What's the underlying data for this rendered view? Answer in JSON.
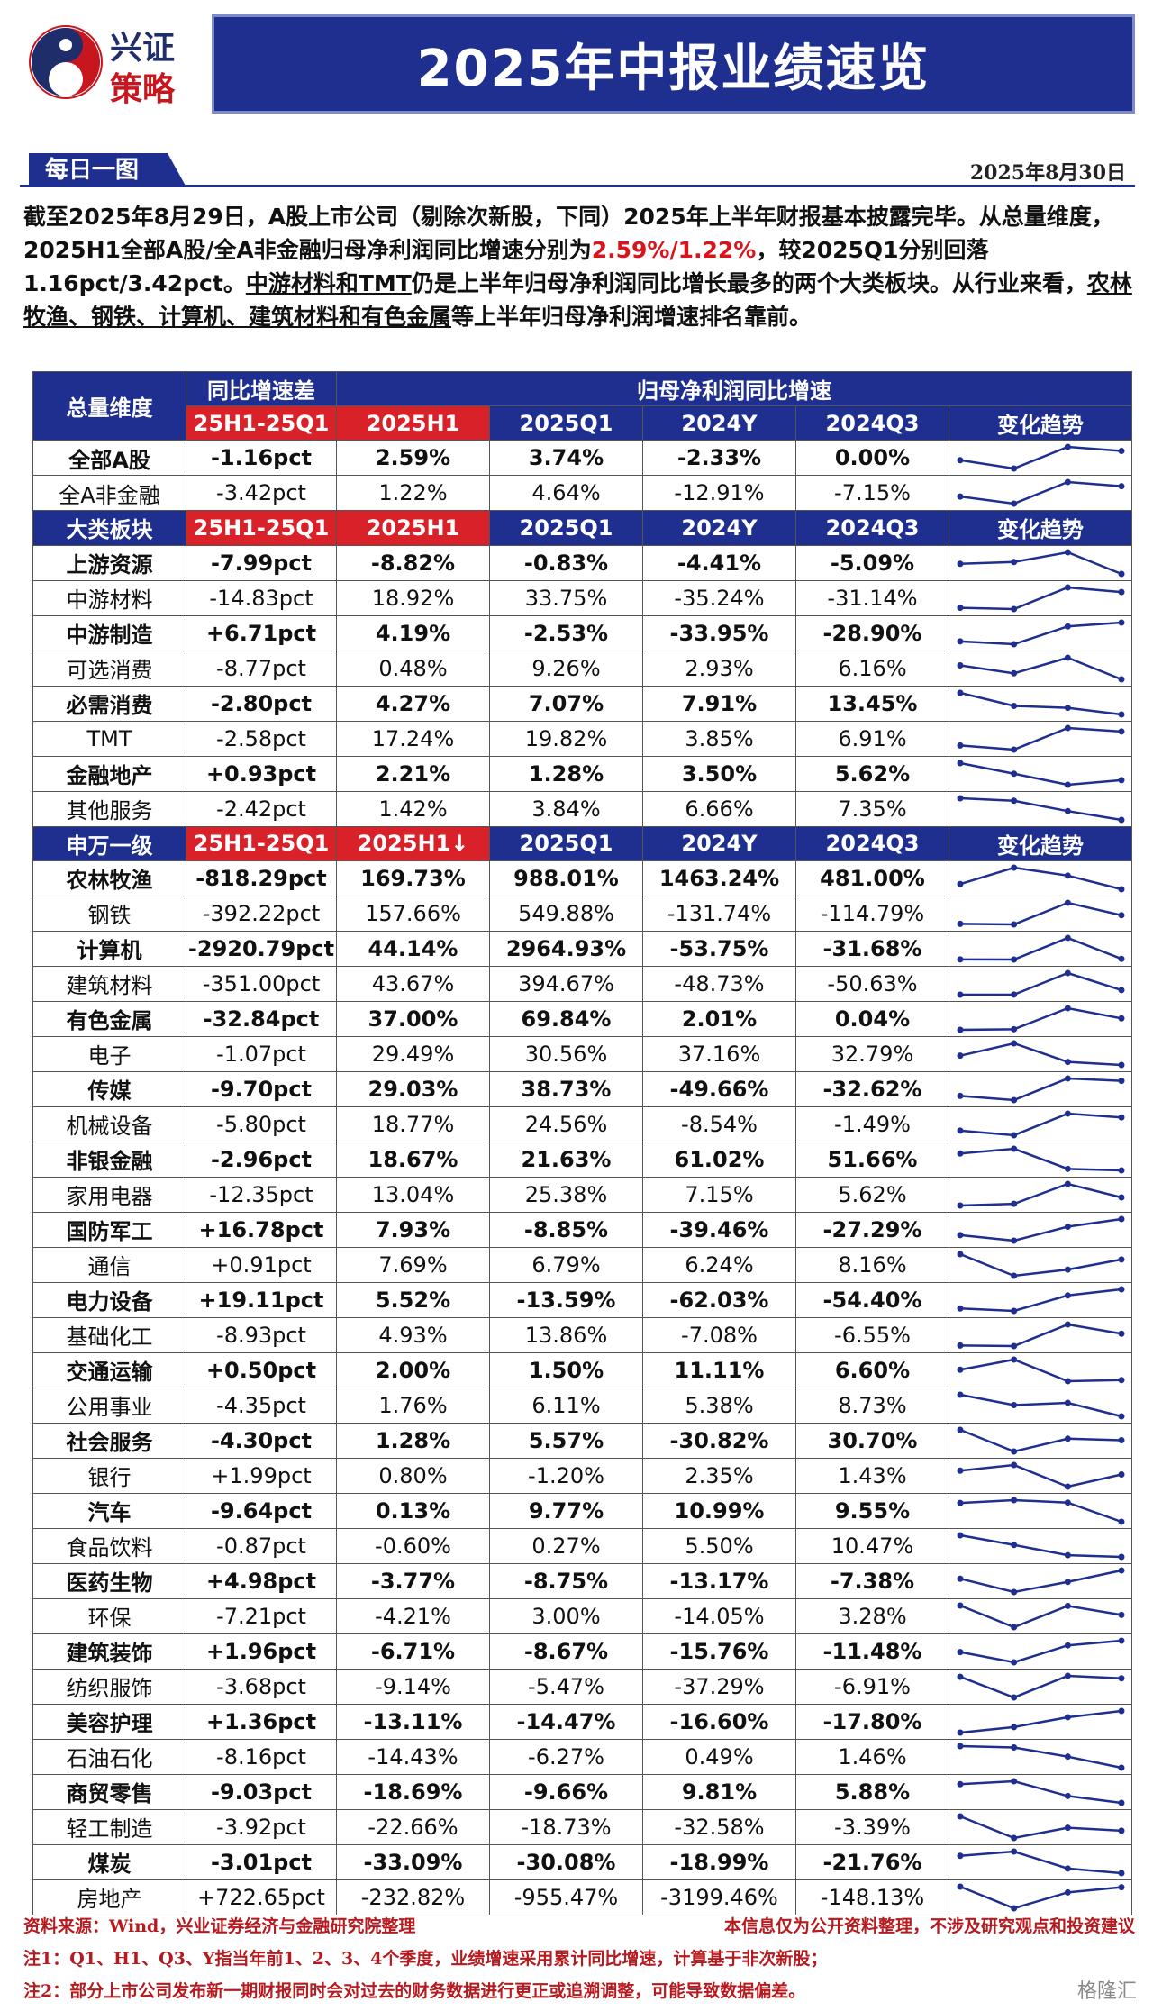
{
  "header": {
    "logo_line1": "兴证",
    "logo_line2": "策略",
    "title": "2025年中报业绩速览"
  },
  "subheader": {
    "tag": "每日一图",
    "date": "2025年8月30日"
  },
  "intro": {
    "p1": "截至2025年8月29日，A股上市公司（剔除次新股，下同）2025年上半年财报基本披露完毕。从总量维度，2025H1全部A股/全A非金融归母净利润同比增速分别为",
    "highlight": "2.59%/1.22%",
    "p2": "，较2025Q1分别回落1.16pct/3.42pct。",
    "underlined": "中游材料和TMT",
    "p3": "仍是上半年归母净利润同比增长最多的两个大类板块。从行业来看，",
    "underlined2": "农林牧渔、钢铁、计算机、建筑材料和有色金属",
    "p4": "等上半年归母净利润增速排名靠前。"
  },
  "table": {
    "top_headers": {
      "dim": "总量维度",
      "diff": "同比增速差",
      "growth": "归母净利润同比增速"
    },
    "col_headers": [
      "25H1-25Q1",
      "2025H1",
      "2025Q1",
      "2024Y",
      "2024Q3",
      "变化趋势"
    ],
    "sections": [
      {
        "title": null,
        "rows": [
          {
            "name": "全部A股",
            "diff": "-1.16pct",
            "h1": "2.59%",
            "q1": "3.74%",
            "y24": "-2.33%",
            "q3": "0.00%",
            "bold": true
          },
          {
            "name": "全A非金融",
            "diff": "-3.42pct",
            "h1": "1.22%",
            "q1": "4.64%",
            "y24": "-12.91%",
            "q3": "-7.15%",
            "bold": false
          }
        ]
      },
      {
        "title": "大类板块",
        "h1_label": "2025H1",
        "rows": [
          {
            "name": "上游资源",
            "diff": "-7.99pct",
            "h1": "-8.82%",
            "q1": "-0.83%",
            "y24": "-4.41%",
            "q3": "-5.09%",
            "bold": true
          },
          {
            "name": "中游材料",
            "diff": "-14.83pct",
            "h1": "18.92%",
            "q1": "33.75%",
            "y24": "-35.24%",
            "q3": "-31.14%",
            "bold": false
          },
          {
            "name": "中游制造",
            "diff": "+6.71pct",
            "h1": "4.19%",
            "q1": "-2.53%",
            "y24": "-33.95%",
            "q3": "-28.90%",
            "bold": true
          },
          {
            "name": "可选消费",
            "diff": "-8.77pct",
            "h1": "0.48%",
            "q1": "9.26%",
            "y24": "2.93%",
            "q3": "6.16%",
            "bold": false
          },
          {
            "name": "必需消费",
            "diff": "-2.80pct",
            "h1": "4.27%",
            "q1": "7.07%",
            "y24": "7.91%",
            "q3": "13.45%",
            "bold": true
          },
          {
            "name": "TMT",
            "diff": "-2.58pct",
            "h1": "17.24%",
            "q1": "19.82%",
            "y24": "3.85%",
            "q3": "6.91%",
            "bold": false
          },
          {
            "name": "金融地产",
            "diff": "+0.93pct",
            "h1": "2.21%",
            "q1": "1.28%",
            "y24": "3.50%",
            "q3": "5.62%",
            "bold": true
          },
          {
            "name": "其他服务",
            "diff": "-2.42pct",
            "h1": "1.42%",
            "q1": "3.84%",
            "y24": "6.66%",
            "q3": "7.35%",
            "bold": false
          }
        ]
      },
      {
        "title": "申万一级",
        "h1_label": "2025H1↓",
        "rows": [
          {
            "name": "农林牧渔",
            "diff": "-818.29pct",
            "h1": "169.73%",
            "q1": "988.01%",
            "y24": "1463.24%",
            "q3": "481.00%",
            "bold": true
          },
          {
            "name": "钢铁",
            "diff": "-392.22pct",
            "h1": "157.66%",
            "q1": "549.88%",
            "y24": "-131.74%",
            "q3": "-114.79%",
            "bold": false
          },
          {
            "name": "计算机",
            "diff": "-2920.79pct",
            "h1": "44.14%",
            "q1": "2964.93%",
            "y24": "-53.75%",
            "q3": "-31.68%",
            "bold": true
          },
          {
            "name": "建筑材料",
            "diff": "-351.00pct",
            "h1": "43.67%",
            "q1": "394.67%",
            "y24": "-48.73%",
            "q3": "-50.63%",
            "bold": false
          },
          {
            "name": "有色金属",
            "diff": "-32.84pct",
            "h1": "37.00%",
            "q1": "69.84%",
            "y24": "2.01%",
            "q3": "0.04%",
            "bold": true
          },
          {
            "name": "电子",
            "diff": "-1.07pct",
            "h1": "29.49%",
            "q1": "30.56%",
            "y24": "37.16%",
            "q3": "32.79%",
            "bold": false
          },
          {
            "name": "传媒",
            "diff": "-9.70pct",
            "h1": "29.03%",
            "q1": "38.73%",
            "y24": "-49.66%",
            "q3": "-32.62%",
            "bold": true
          },
          {
            "name": "机械设备",
            "diff": "-5.80pct",
            "h1": "18.77%",
            "q1": "24.56%",
            "y24": "-8.54%",
            "q3": "-1.49%",
            "bold": false
          },
          {
            "name": "非银金融",
            "diff": "-2.96pct",
            "h1": "18.67%",
            "q1": "21.63%",
            "y24": "61.02%",
            "q3": "51.66%",
            "bold": true
          },
          {
            "name": "家用电器",
            "diff": "-12.35pct",
            "h1": "13.04%",
            "q1": "25.38%",
            "y24": "7.15%",
            "q3": "5.62%",
            "bold": false
          },
          {
            "name": "国防军工",
            "diff": "+16.78pct",
            "h1": "7.93%",
            "q1": "-8.85%",
            "y24": "-39.46%",
            "q3": "-27.29%",
            "bold": true
          },
          {
            "name": "通信",
            "diff": "+0.91pct",
            "h1": "7.69%",
            "q1": "6.79%",
            "y24": "6.24%",
            "q3": "8.16%",
            "bold": false
          },
          {
            "name": "电力设备",
            "diff": "+19.11pct",
            "h1": "5.52%",
            "q1": "-13.59%",
            "y24": "-62.03%",
            "q3": "-54.40%",
            "bold": true
          },
          {
            "name": "基础化工",
            "diff": "-8.93pct",
            "h1": "4.93%",
            "q1": "13.86%",
            "y24": "-7.08%",
            "q3": "-6.55%",
            "bold": false
          },
          {
            "name": "交通运输",
            "diff": "+0.50pct",
            "h1": "2.00%",
            "q1": "1.50%",
            "y24": "11.11%",
            "q3": "6.60%",
            "bold": true
          },
          {
            "name": "公用事业",
            "diff": "-4.35pct",
            "h1": "1.76%",
            "q1": "6.11%",
            "y24": "5.38%",
            "q3": "8.73%",
            "bold": false
          },
          {
            "name": "社会服务",
            "diff": "-4.30pct",
            "h1": "1.28%",
            "q1": "5.57%",
            "y24": "-30.82%",
            "q3": "30.70%",
            "bold": true
          },
          {
            "name": "银行",
            "diff": "+1.99pct",
            "h1": "0.80%",
            "q1": "-1.20%",
            "y24": "2.35%",
            "q3": "1.43%",
            "bold": false
          },
          {
            "name": "汽车",
            "diff": "-9.64pct",
            "h1": "0.13%",
            "q1": "9.77%",
            "y24": "10.99%",
            "q3": "9.55%",
            "bold": true
          },
          {
            "name": "食品饮料",
            "diff": "-0.87pct",
            "h1": "-0.60%",
            "q1": "0.27%",
            "y24": "5.50%",
            "q3": "10.47%",
            "bold": false
          },
          {
            "name": "医药生物",
            "diff": "+4.98pct",
            "h1": "-3.77%",
            "q1": "-8.75%",
            "y24": "-13.17%",
            "q3": "-7.38%",
            "bold": true
          },
          {
            "name": "环保",
            "diff": "-7.21pct",
            "h1": "-4.21%",
            "q1": "3.00%",
            "y24": "-14.05%",
            "q3": "3.28%",
            "bold": false
          },
          {
            "name": "建筑装饰",
            "diff": "+1.96pct",
            "h1": "-6.71%",
            "q1": "-8.67%",
            "y24": "-15.76%",
            "q3": "-11.48%",
            "bold": true
          },
          {
            "name": "纺织服饰",
            "diff": "-3.68pct",
            "h1": "-9.14%",
            "q1": "-5.47%",
            "y24": "-37.29%",
            "q3": "-6.91%",
            "bold": false
          },
          {
            "name": "美容护理",
            "diff": "+1.36pct",
            "h1": "-13.11%",
            "q1": "-14.47%",
            "y24": "-16.60%",
            "q3": "-17.80%",
            "bold": true
          },
          {
            "name": "石油石化",
            "diff": "-8.16pct",
            "h1": "-14.43%",
            "q1": "-6.27%",
            "y24": "0.49%",
            "q3": "1.46%",
            "bold": false
          },
          {
            "name": "商贸零售",
            "diff": "-9.03pct",
            "h1": "-18.69%",
            "q1": "-9.66%",
            "y24": "9.81%",
            "q3": "5.88%",
            "bold": true
          },
          {
            "name": "轻工制造",
            "diff": "-3.92pct",
            "h1": "-22.66%",
            "q1": "-18.73%",
            "y24": "-32.58%",
            "q3": "-3.39%",
            "bold": false
          },
          {
            "name": "煤炭",
            "diff": "-3.01pct",
            "h1": "-33.09%",
            "q1": "-30.08%",
            "y24": "-18.99%",
            "q3": "-21.76%",
            "bold": true
          },
          {
            "name": "房地产",
            "diff": "+722.65pct",
            "h1": "-232.82%",
            "q1": "-955.47%",
            "y24": "-3199.46%",
            "q3": "-148.13%",
            "bold": false
          }
        ]
      }
    ]
  },
  "notes": {
    "source": "资料来源：Wind，兴业证券经济与金融研究院整理",
    "disclaimer": "本信息仅为公开资料整理，不涉及研究观点和投资建议",
    "note1": "注1：Q1、H1、Q3、Y指当年前1、2、3、4个季度，业绩增速采用累计同比增速，计算基于非次新股；",
    "note2": "注2：部分上市公司发布新一期财报同时会对过去的财务数据进行更正或追溯调整，可能导致数据偏差。"
  },
  "watermark": "格隆汇",
  "colors": {
    "navy": "#1f2f8f",
    "red": "#d9212a",
    "line": "#1f2f8f"
  }
}
